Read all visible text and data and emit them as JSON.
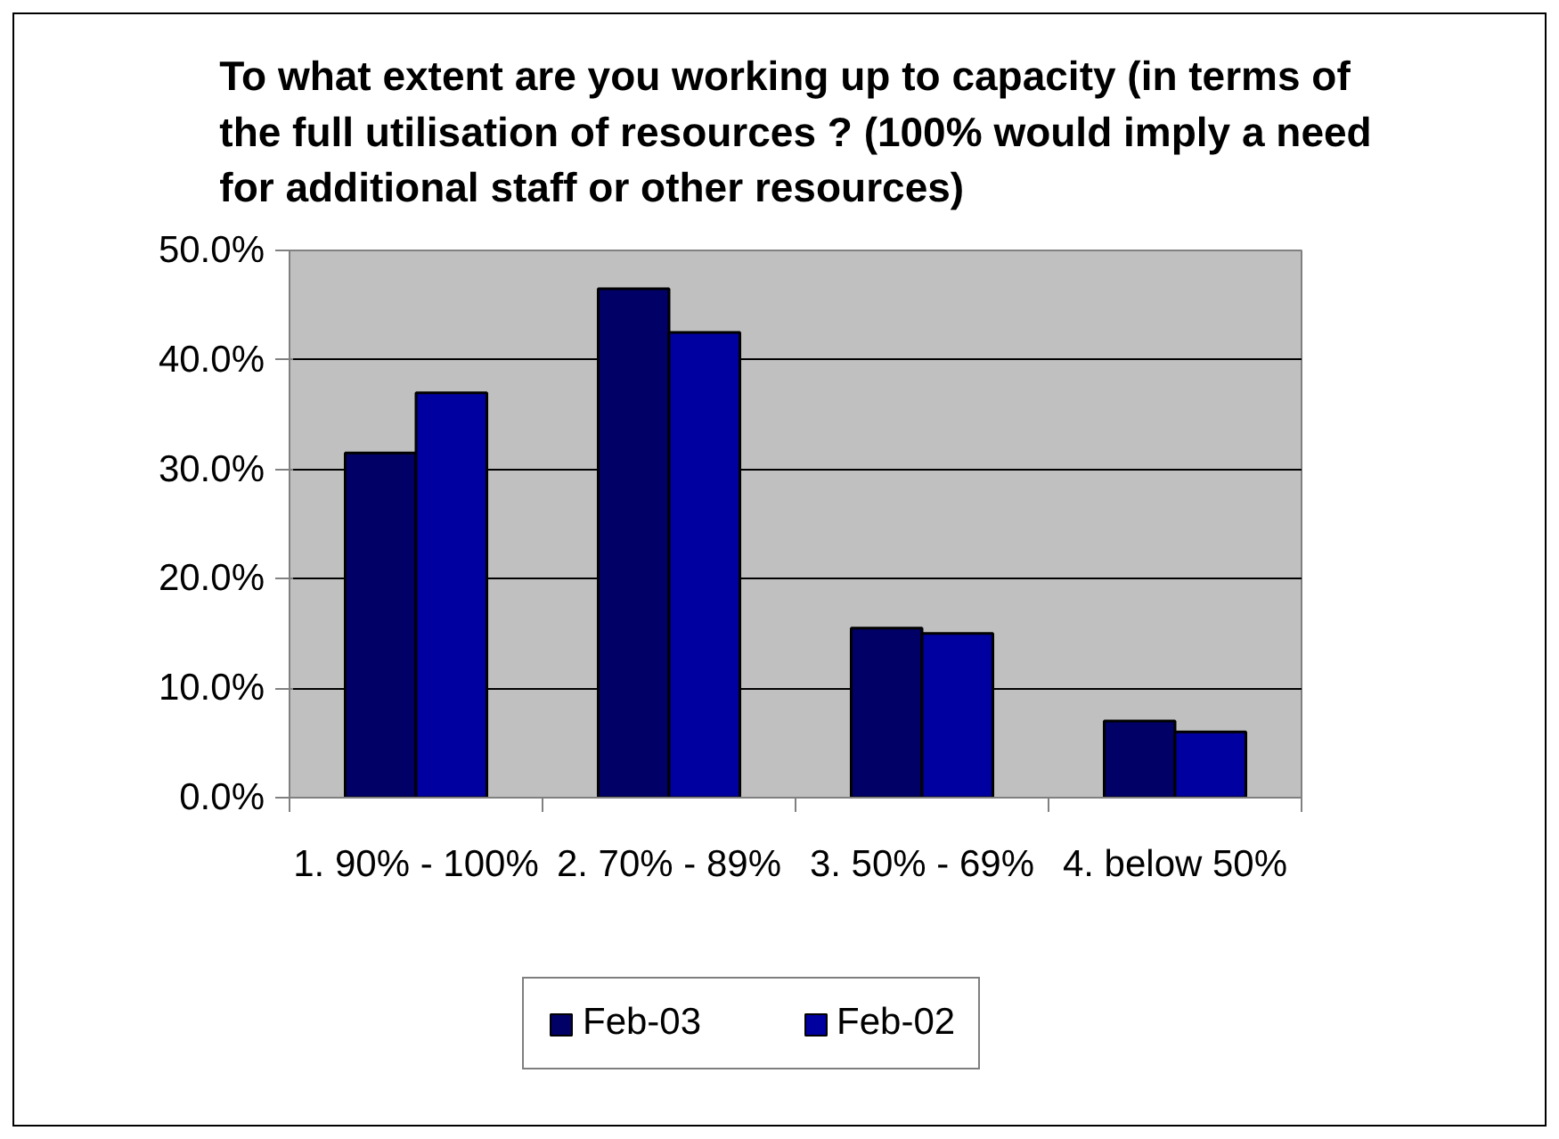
{
  "chart_data": {
    "type": "bar",
    "title": "To what extent are you working up to capacity (in terms of the full utilisation of resources ? (100% would imply a need for additional staff or other resources)",
    "categories": [
      "1. 90% - 100%",
      "2. 70% - 89%",
      "3. 50% - 69%",
      "4. below 50%"
    ],
    "series": [
      {
        "name": "Feb-03",
        "color": "#000066",
        "values": [
          31.5,
          46.5,
          15.5,
          7
        ]
      },
      {
        "name": "Feb-02",
        "color": "#0000a0",
        "values": [
          37,
          42.5,
          15,
          6
        ]
      }
    ],
    "ylim": [
      0,
      50
    ],
    "yticks": [
      {
        "value": 0,
        "label": "0.0%"
      },
      {
        "value": 10,
        "label": "10.0%"
      },
      {
        "value": 20,
        "label": "20.0%"
      },
      {
        "value": 30,
        "label": "30.0%"
      },
      {
        "value": 40,
        "label": "40.0%"
      },
      {
        "value": 50,
        "label": "50.0%"
      }
    ],
    "grid": "y",
    "legend": "bottom"
  }
}
